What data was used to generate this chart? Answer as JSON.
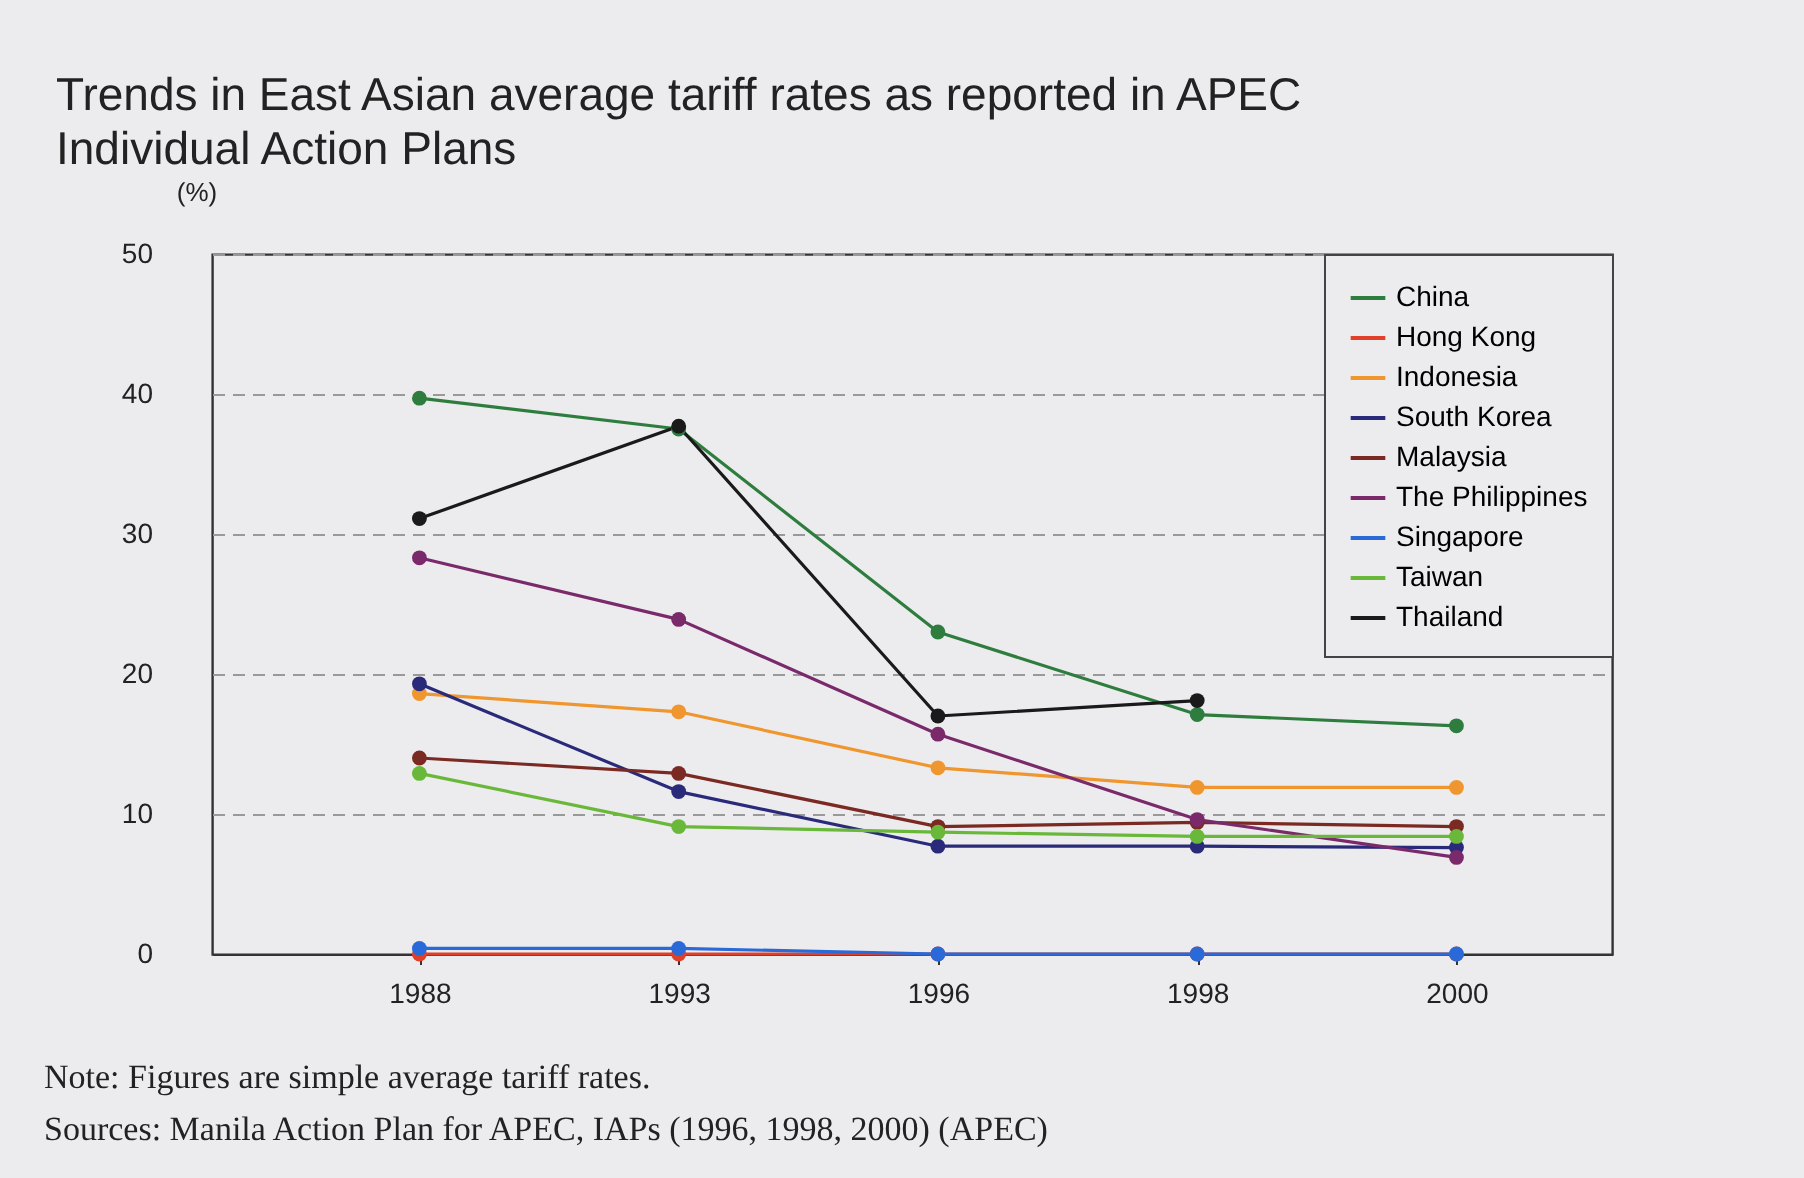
{
  "chart_data": {
    "type": "line",
    "title": "Trends in East Asian average tariff rates as reported in APEC Individual Action Plans",
    "ylabel": "(%)",
    "categories": [
      "1988",
      "1993",
      "1996",
      "1998",
      "2000"
    ],
    "series": [
      {
        "name": "China",
        "color": "#2e7d3e",
        "values": [
          39.7,
          37.5,
          23,
          17.1,
          16.3
        ]
      },
      {
        "name": "Hong Kong",
        "color": "#e0402a",
        "values": [
          0,
          0,
          0,
          0,
          0
        ]
      },
      {
        "name": "Indonesia",
        "color": "#f0962e",
        "values": [
          18.6,
          17.3,
          13.3,
          11.9,
          11.9
        ]
      },
      {
        "name": "South Korea",
        "color": "#2a2a7a",
        "values": [
          19.3,
          11.6,
          7.7,
          7.7,
          7.6
        ]
      },
      {
        "name": "Malaysia",
        "color": "#7a2a22",
        "values": [
          14,
          12.9,
          9.1,
          9.4,
          9.1
        ]
      },
      {
        "name": "The Philippines",
        "color": "#7a2a6a",
        "values": [
          28.3,
          23.9,
          15.7,
          9.6,
          6.9
        ]
      },
      {
        "name": "Singapore",
        "color": "#2a6ad8",
        "values": [
          0.4,
          0.4,
          0,
          0,
          0
        ]
      },
      {
        "name": "Taiwan",
        "color": "#6ab83a",
        "values": [
          12.9,
          9.1,
          8.7,
          8.4,
          8.4
        ]
      },
      {
        "name": "Thailand",
        "color": "#1a1a1a",
        "values": [
          31.1,
          37.7,
          17,
          18.1,
          null
        ]
      }
    ],
    "ylim": [
      0,
      50
    ],
    "yticks": [
      0,
      10,
      20,
      30,
      40,
      50
    ],
    "grid": "y",
    "legend": "top right",
    "marker": "circle",
    "line_style": "solid",
    "annotations": [
      "Note: Figures are simple average tariff rates.",
      "Sources: Manila Action Plan for APEC, IAPs (1996, 1998, 2000) (APEC)"
    ]
  }
}
